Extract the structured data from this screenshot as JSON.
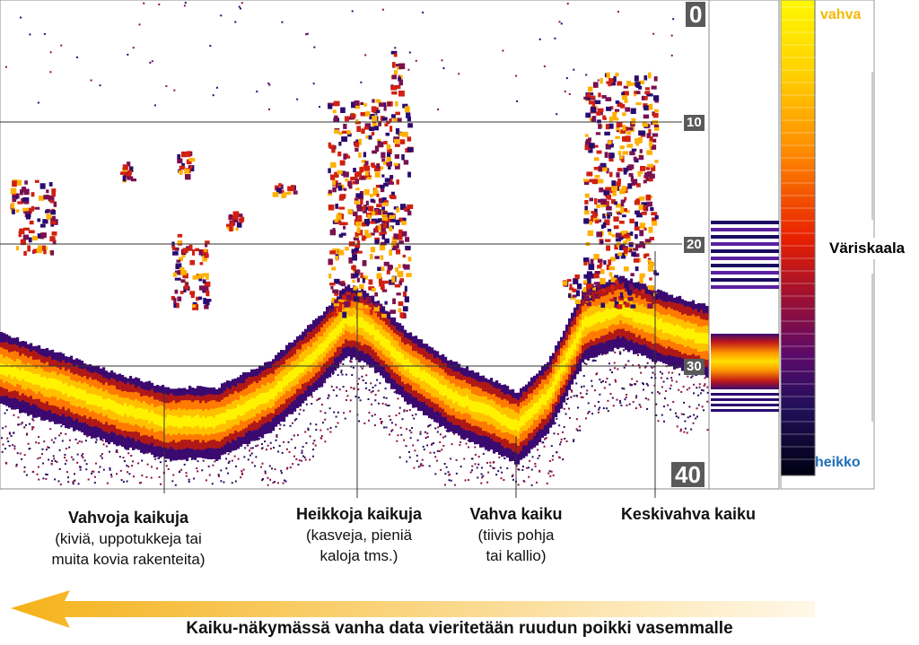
{
  "depth_scale": {
    "top": "0",
    "marks": [
      "10",
      "20",
      "30"
    ],
    "bottom": "40"
  },
  "color_scale": {
    "title": "Väriskaala",
    "strong": "vahva",
    "weak": "heikko",
    "strong_color": "#f5b800",
    "weak_color": "#1f6fb5"
  },
  "callouts": [
    {
      "title": "Vahvoja kaikuja",
      "lines": [
        "(kiviä, uppotukkeja tai",
        "muita kovia rakenteita)"
      ]
    },
    {
      "title": "Heikkoja kaikuja",
      "lines": [
        "(kasveja, pieniä",
        "kaloja tms.)"
      ]
    },
    {
      "title": "Vahva kaiku",
      "lines": [
        "(tiivis pohja",
        "tai kallio)"
      ]
    },
    {
      "title": "Keskivahva kaiku",
      "lines": []
    }
  ],
  "footer": {
    "caption": "Kaiku-näkymässä vanha data vieritetään ruudun poikki vasemmalle"
  },
  "icons": [
    "left-arrow-icon"
  ]
}
